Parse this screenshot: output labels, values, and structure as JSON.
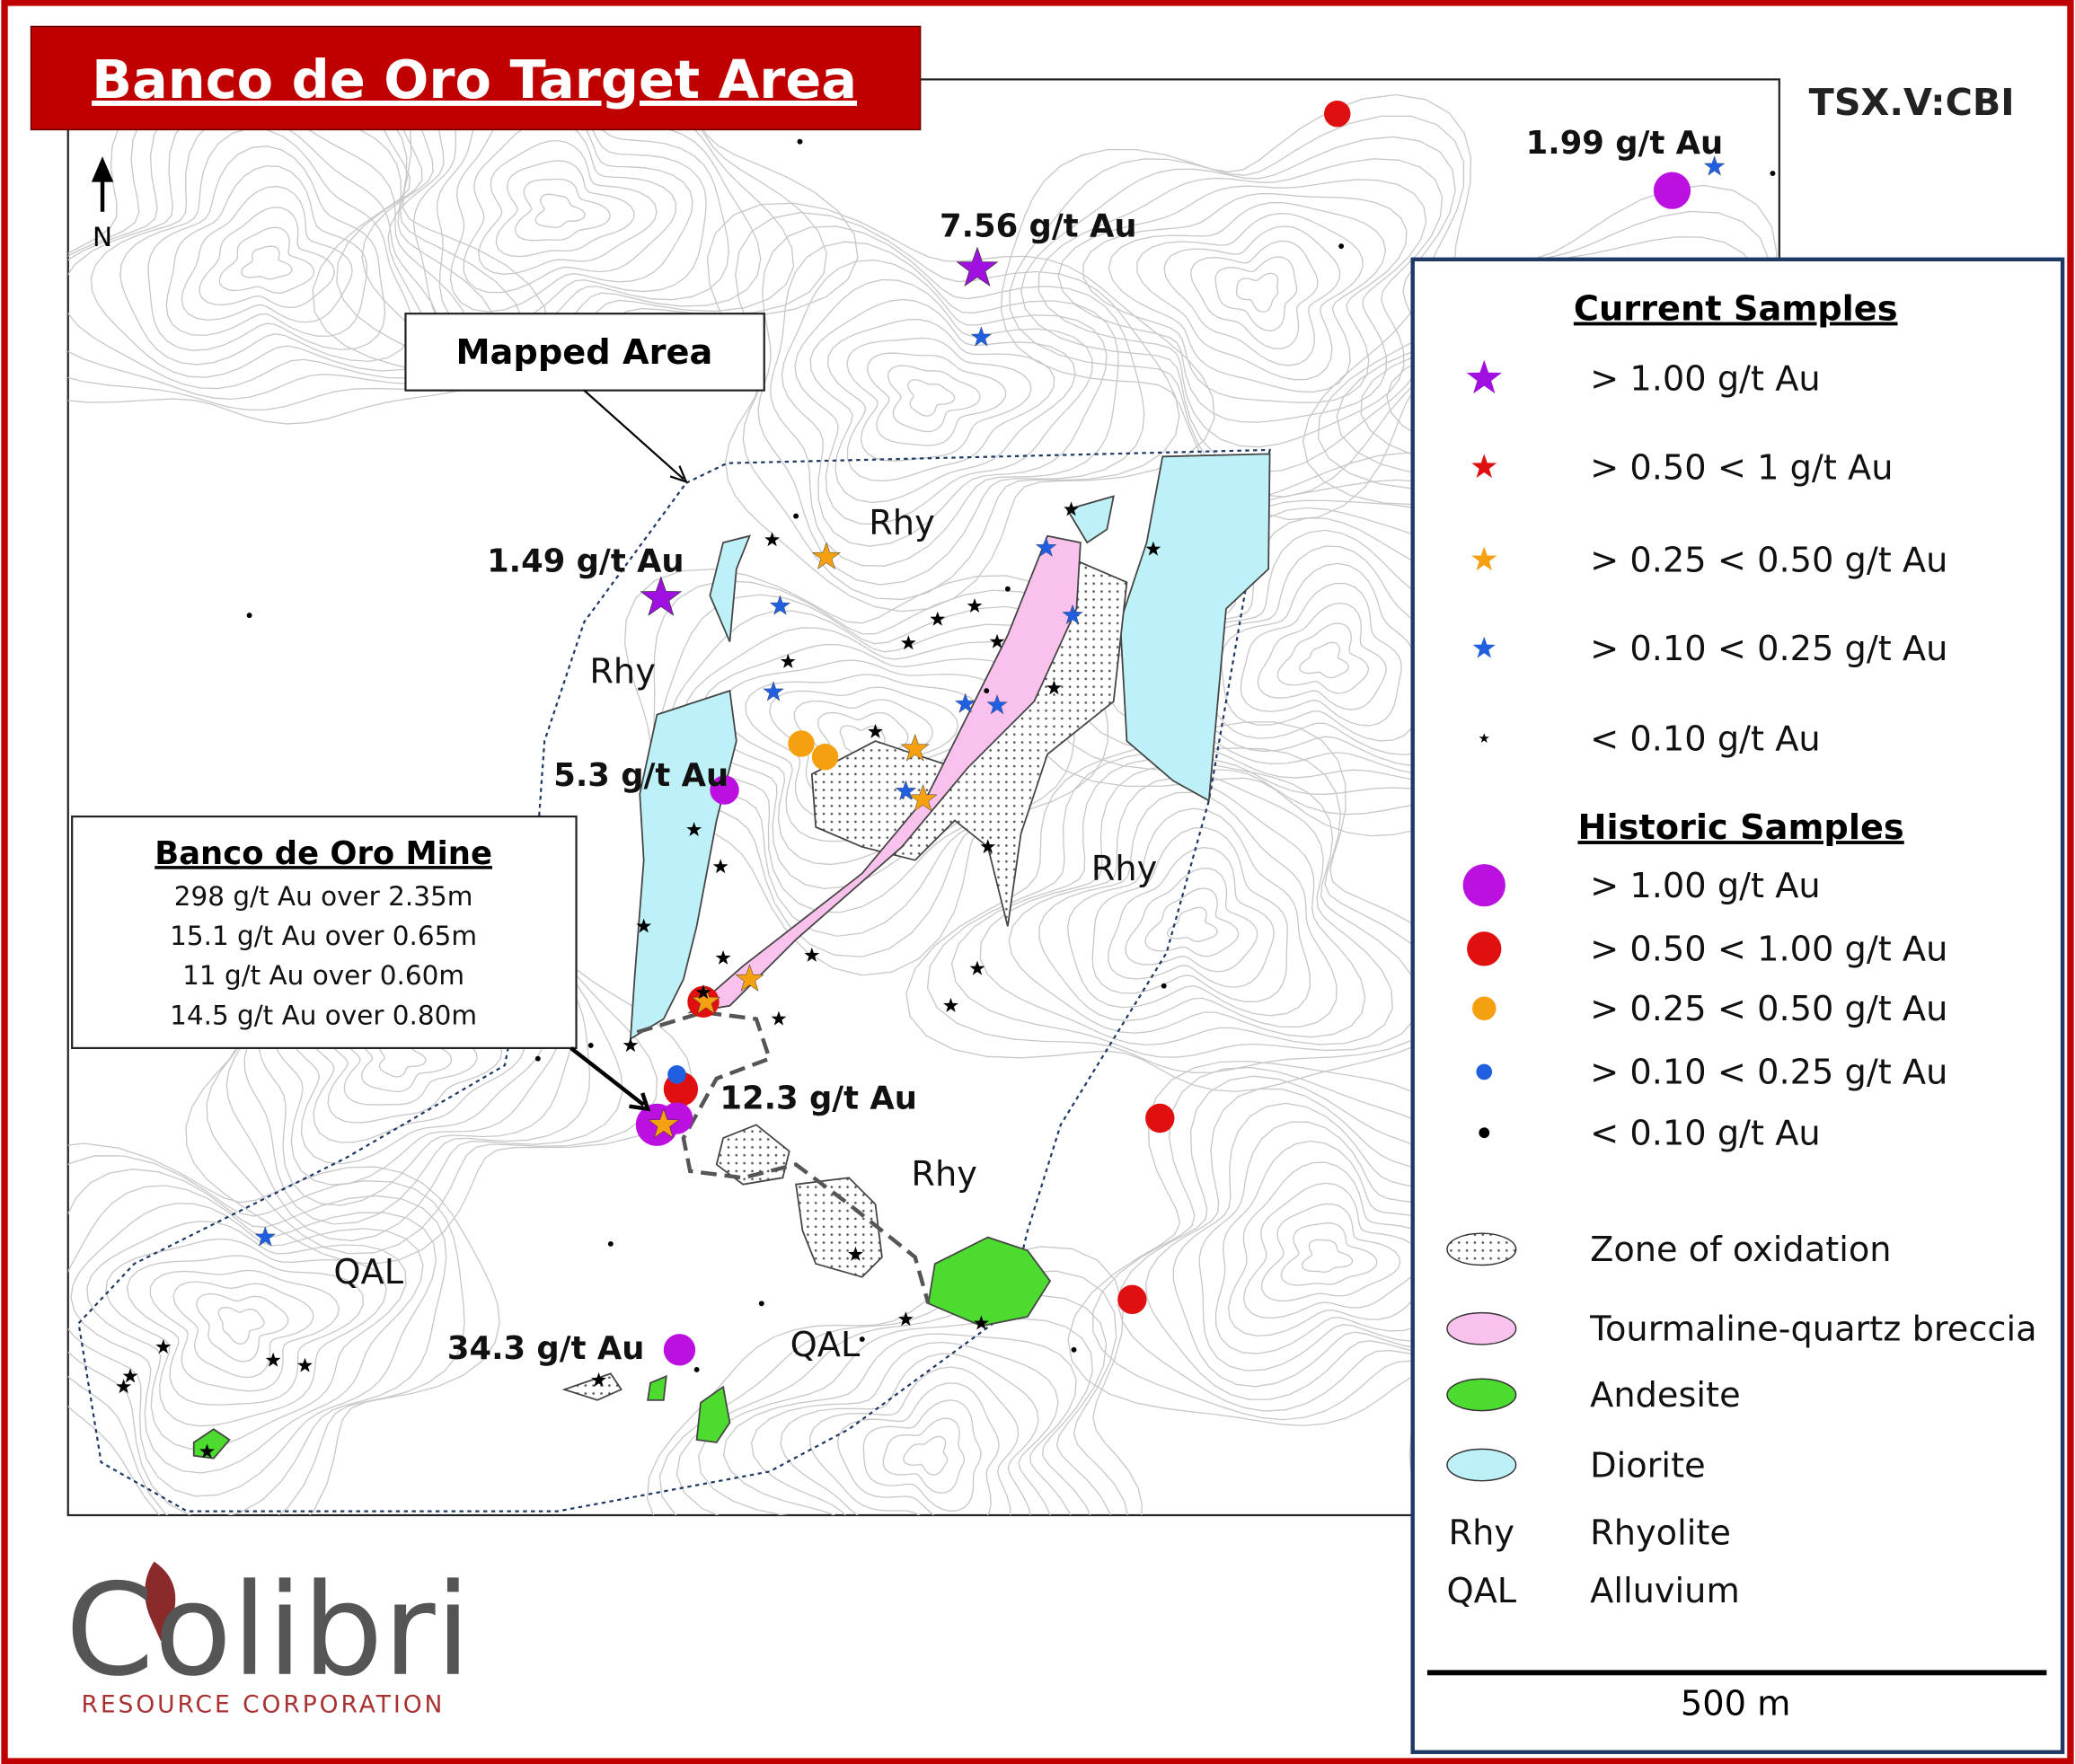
{
  "header": {
    "title": "Banco de Oro Target Area",
    "ticker": "TSX.V:CBI"
  },
  "map": {
    "north_label": "N",
    "mapped_area_label": "Mapped Area",
    "sample_labels": [
      "1.99 g/t Au",
      "7.56 g/t Au",
      "1.49 g/t Au",
      "5.3 g/t Au",
      "12.3 g/t Au",
      "34.3 g/t Au"
    ],
    "unit_labels": [
      "Rhy",
      "Rhy",
      "Rhy",
      "Rhy",
      "QAL",
      "QAL"
    ]
  },
  "mine_box": {
    "title": "Banco de Oro Mine",
    "intercepts": [
      "298 g/t Au over 2.35m",
      "15.1 g/t Au over 0.65m",
      "11 g/t Au over 0.60m",
      "14.5 g/t Au over 0.80m"
    ]
  },
  "legend": {
    "current_samples": {
      "title": "Current Samples",
      "items": [
        "> 1.00 g/t Au",
        "> 0.50 < 1 g/t Au",
        "> 0.25 < 0.50 g/t Au",
        "> 0.10 < 0.25 g/t Au",
        "< 0.10 g/t Au"
      ]
    },
    "historic_samples": {
      "title": "Historic Samples",
      "items": [
        "> 1.00 g/t Au",
        "> 0.50 < 1.00 g/t Au",
        "> 0.25 < 0.50 g/t Au",
        "> 0.10 < 0.25 g/t Au",
        "< 0.10 g/t Au"
      ]
    },
    "units": [
      {
        "label": "Zone of oxidation"
      },
      {
        "label": "Tourmaline-quartz breccia"
      },
      {
        "label": "Andesite"
      },
      {
        "label": "Diorite"
      },
      {
        "code": "Rhy",
        "label": "Rhyolite"
      },
      {
        "code": "QAL",
        "label": "Alluvium"
      }
    ]
  },
  "scale_bar": "500 m",
  "logo": {
    "name": "Colibri",
    "subtitle": "RESOURCE CORPORATION"
  }
}
